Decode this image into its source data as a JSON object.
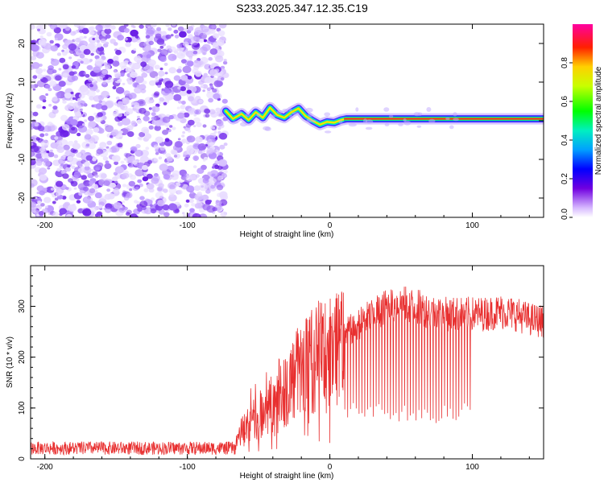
{
  "title": "S233.2025.347.12.35.C19",
  "chart_data": [
    {
      "type": "heatmap",
      "name": "spectrogram",
      "xlabel": "Height of straight line (km)",
      "ylabel": "Frequency (Hz)",
      "xlim": [
        -210,
        150
      ],
      "ylim": [
        -25,
        25
      ],
      "xticks": [
        -200,
        -100,
        0,
        100
      ],
      "xtick_labels": [
        "-200",
        "-100",
        "0",
        "100"
      ],
      "yticks": [
        -20,
        -10,
        0,
        10,
        20
      ],
      "ytick_labels": [
        "-20",
        "-10",
        "0",
        "10",
        "20"
      ],
      "noise_region_x": [
        -210,
        -73
      ],
      "signal_start_x": -73,
      "carrier_segments": [
        {
          "x0": -73,
          "x1": 10,
          "frequency": 1.5,
          "note": "unstable tone"
        },
        {
          "x0": 10,
          "x1": 150,
          "frequency": 0.5,
          "note": "stable carrier"
        }
      ],
      "ridge_points": [
        [
          -73,
          2.5
        ],
        [
          -68,
          0.5
        ],
        [
          -62,
          1.8
        ],
        [
          -57,
          0.2
        ],
        [
          -52,
          2.2
        ],
        [
          -47,
          0.8
        ],
        [
          -42,
          3.4
        ],
        [
          -37,
          1.5
        ],
        [
          -32,
          0.8
        ],
        [
          -27,
          2.2
        ],
        [
          -22,
          3.2
        ],
        [
          -17,
          1.2
        ],
        [
          -12,
          0.0
        ],
        [
          -7,
          -1.0
        ],
        [
          -2,
          -0.3
        ],
        [
          3,
          -0.5
        ],
        [
          8,
          0.2
        ],
        [
          12,
          0.5
        ],
        [
          40,
          0.5
        ],
        [
          90,
          0.5
        ],
        [
          150,
          0.5
        ]
      ],
      "colorbar": {
        "label": "Normalized spectral amplitude",
        "min": 0,
        "max": 1,
        "ticks": [
          0.0,
          0.2,
          0.4,
          0.6,
          0.8
        ],
        "tick_labels": [
          "0.0",
          "0.2",
          "0.4",
          "0.6",
          "0.8"
        ]
      }
    },
    {
      "type": "line",
      "name": "snr",
      "xlabel": "Height of straight line (km)",
      "ylabel": "SNR (10 * v/v)",
      "xlim": [
        -210,
        150
      ],
      "ylim": [
        0,
        380
      ],
      "xticks": [
        -200,
        -100,
        0,
        100
      ],
      "xtick_labels": [
        "-200",
        "-100",
        "0",
        "100"
      ],
      "yticks": [
        0,
        100,
        200,
        300
      ],
      "ytick_labels": [
        "0",
        "100",
        "200",
        "300"
      ],
      "series_color": "#e83030",
      "envelope": {
        "x": [
          -210,
          -66,
          -65,
          -50,
          -40,
          -30,
          -20,
          -10,
          0,
          10,
          20,
          30,
          40,
          50,
          60,
          70,
          80,
          90,
          100,
          110,
          120,
          130,
          140,
          150
        ],
        "y": [
          18,
          18,
          45,
          85,
          110,
          145,
          175,
          200,
          220,
          245,
          265,
          285,
          300,
          305,
          300,
          290,
          285,
          285,
          285,
          285,
          290,
          285,
          275,
          270
        ]
      },
      "dropouts": {
        "x_range": [
          10,
          100
        ],
        "min_value": 70,
        "count": 45
      }
    }
  ]
}
